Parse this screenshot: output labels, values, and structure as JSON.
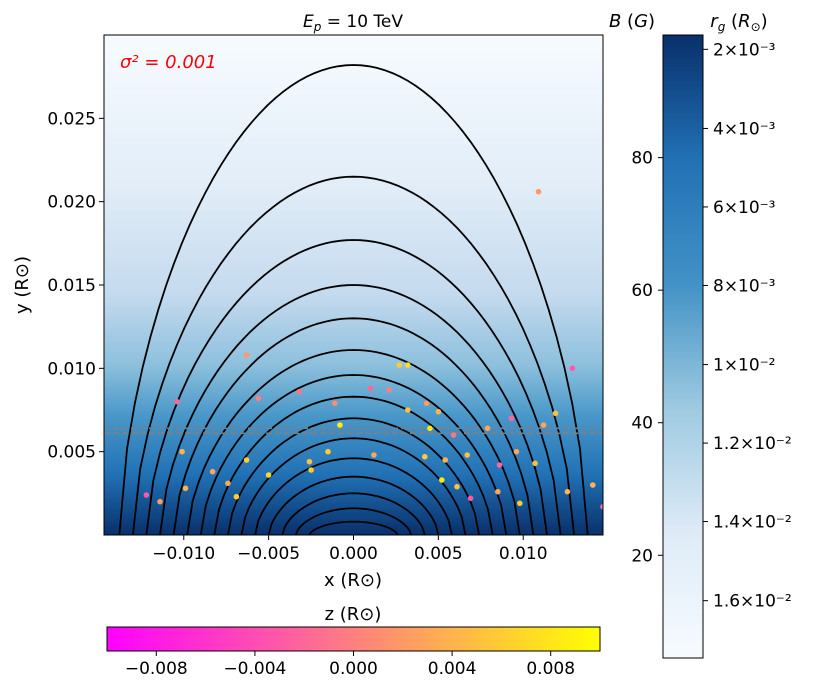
{
  "chart_data": {
    "type": "contour-scatter",
    "title": "$E_p = 10$ TeV",
    "annotation": "σ² = 0.001",
    "annotation_color": "#ff0000",
    "xlabel": "x (R⊙)",
    "ylabel": "y (R⊙)",
    "xlim": [
      -0.0147,
      0.0147
    ],
    "ylim": [
      0,
      0.03
    ],
    "xticks": [
      -0.01,
      -0.005,
      0.0,
      0.005,
      0.01
    ],
    "xtick_labels": [
      "−0.010",
      "−0.005",
      "0.000",
      "0.005",
      "0.010"
    ],
    "yticks": [
      0.005,
      0.01,
      0.015,
      0.02,
      0.025
    ],
    "ytick_labels": [
      "0.005",
      "0.010",
      "0.015",
      "0.020",
      "0.025"
    ],
    "background_colormap": "Blues",
    "field_lines": {
      "color": "#000000",
      "half_width_at_base": [
        0.0138,
        0.013,
        0.0122,
        0.0114,
        0.0106,
        0.0098,
        0.009,
        0.0082,
        0.0074,
        0.0066,
        0.0058,
        0.005,
        0.0042,
        0.0034,
        0.0026
      ],
      "apex_height": [
        0.0282,
        0.0215,
        0.0177,
        0.015,
        0.013,
        0.0111,
        0.0096,
        0.0083,
        0.007,
        0.0058,
        0.0046,
        0.0035,
        0.0025,
        0.0016,
        0.0008
      ]
    },
    "dashed_lines": {
      "color": "#808080",
      "y": [
        0.0061,
        0.0064
      ]
    },
    "scatter": {
      "color_by": "z",
      "points": [
        [
          -0.0104,
          0.008,
          -0.002
        ],
        [
          -0.0063,
          0.0108,
          0.002
        ],
        [
          -0.0056,
          0.0082,
          0.0
        ],
        [
          -0.0032,
          0.0086,
          -0.001
        ],
        [
          -0.0011,
          0.0079,
          0.001
        ],
        [
          0.001,
          0.0088,
          -0.002
        ],
        [
          0.0021,
          0.0087,
          0.0
        ],
        [
          0.0027,
          0.0102,
          0.006
        ],
        [
          0.0032,
          0.0102,
          0.007
        ],
        [
          0.0043,
          0.0079,
          0.002
        ],
        [
          0.005,
          0.0074,
          0.004
        ],
        [
          0.0032,
          0.0075,
          0.005
        ],
        [
          0.0045,
          0.0064,
          0.008
        ],
        [
          0.0059,
          0.006,
          -0.001
        ],
        [
          0.0079,
          0.0064,
          0.003
        ],
        [
          0.0093,
          0.007,
          -0.002
        ],
        [
          0.0112,
          0.0066,
          0.003
        ],
        [
          0.0119,
          0.0073,
          0.005
        ],
        [
          0.0109,
          0.0206,
          0.002
        ],
        [
          0.0129,
          0.01,
          -0.003
        ],
        [
          0.0141,
          0.003,
          0.004
        ],
        [
          0.0147,
          0.0017,
          -0.001
        ],
        [
          -0.0101,
          0.005,
          0.004
        ],
        [
          -0.0083,
          0.0038,
          0.003
        ],
        [
          -0.0063,
          0.0045,
          0.006
        ],
        [
          -0.005,
          0.0036,
          0.007
        ],
        [
          -0.0026,
          0.0044,
          0.005
        ],
        [
          -0.0015,
          0.005,
          0.006
        ],
        [
          -0.0008,
          0.0066,
          0.009
        ],
        [
          0.0012,
          0.0048,
          0.003
        ],
        [
          0.0042,
          0.0047,
          0.006
        ],
        [
          0.0054,
          0.0045,
          0.004
        ],
        [
          0.0052,
          0.0033,
          0.008
        ],
        [
          0.0067,
          0.0048,
          0.005
        ],
        [
          0.0086,
          0.0042,
          -0.002
        ],
        [
          0.0096,
          0.005,
          0.003
        ],
        [
          0.0107,
          0.0043,
          0.005
        ],
        [
          0.0126,
          0.0026,
          0.004
        ],
        [
          -0.0025,
          0.0039,
          0.006
        ],
        [
          -0.0122,
          0.0024,
          -0.003
        ],
        [
          -0.0114,
          0.002,
          0.002
        ],
        [
          -0.0099,
          0.0028,
          0.004
        ],
        [
          -0.0074,
          0.0031,
          0.003
        ],
        [
          -0.0069,
          0.0023,
          0.006
        ],
        [
          0.0061,
          0.0029,
          0.005
        ],
        [
          0.0069,
          0.0022,
          -0.003
        ],
        [
          0.0085,
          0.0026,
          0.003
        ],
        [
          0.0098,
          0.0019,
          0.006
        ]
      ]
    },
    "colorbar_B": {
      "label": "B (G)",
      "ticks": [
        20,
        40,
        60,
        80
      ],
      "range": [
        4.5,
        98.5
      ],
      "colormap": "Blues"
    },
    "colorbar_rg": {
      "label": "r_g (R⊙)",
      "ticks": [
        {
          "label": "2×10⁻³",
          "frac": 0.977
        },
        {
          "label": "4×10⁻³",
          "frac": 0.85
        },
        {
          "label": "6×10⁻³",
          "frac": 0.724
        },
        {
          "label": "8×10⁻³",
          "frac": 0.598
        },
        {
          "label": "1×10⁻²",
          "frac": 0.471
        },
        {
          "label": "1.2×10⁻²",
          "frac": 0.345
        },
        {
          "label": "1.4×10⁻²",
          "frac": 0.219
        },
        {
          "label": "1.6×10⁻²",
          "frac": 0.092
        }
      ]
    },
    "colorbar_z": {
      "label": "z (R⊙)",
      "range": [
        -0.01,
        0.01
      ],
      "ticks": [
        -0.008,
        -0.004,
        0.0,
        0.004,
        0.008
      ],
      "tick_labels": [
        "−0.008",
        "−0.004",
        "0.000",
        "0.004",
        "0.008"
      ],
      "colormap": "spring"
    }
  }
}
